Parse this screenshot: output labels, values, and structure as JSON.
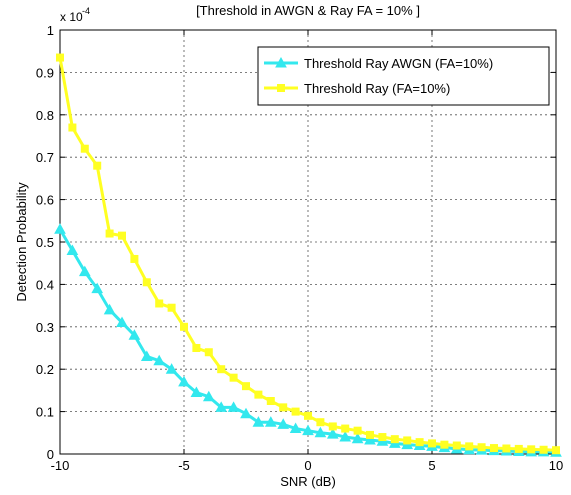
{
  "chart_data": {
    "type": "line",
    "title": "[Threshold in AWGN & Ray FA = 10% ]",
    "xlabel": "SNR (dB)",
    "ylabel": "Detection Probability",
    "y_exponent_base": "x 10",
    "y_exponent_power": "-4",
    "xlim": [
      -10,
      10
    ],
    "ylim": [
      0,
      1
    ],
    "xticks": [
      -10,
      -5,
      0,
      5,
      10
    ],
    "yticks": [
      0,
      0.1,
      0.2,
      0.3,
      0.4,
      0.5,
      0.6,
      0.7,
      0.8,
      0.9,
      1
    ],
    "ytick_labels": [
      "0",
      "0.1",
      "0.2",
      "0.3",
      "0.4",
      "0.5",
      "0.6",
      "0.7",
      "0.8",
      "0.9",
      "1"
    ],
    "xtick_labels": [
      "-10",
      "-5",
      "0",
      "5",
      "10"
    ],
    "grid": true,
    "legend_position": "top-right",
    "x": [
      -10,
      -9.5,
      -9,
      -8.5,
      -8,
      -7.5,
      -7,
      -6.5,
      -6,
      -5.5,
      -5,
      -4.5,
      -4,
      -3.5,
      -3,
      -2.5,
      -2,
      -1.5,
      -1,
      -0.5,
      0,
      0.5,
      1,
      1.5,
      2,
      2.5,
      3,
      3.5,
      4,
      4.5,
      5,
      5.5,
      6,
      6.5,
      7,
      7.5,
      8,
      8.5,
      9,
      9.5,
      10
    ],
    "series": [
      {
        "name": "Threshold  Ray  AWGN (FA=10%)",
        "color": "#33e8ee",
        "marker": "triangle",
        "values": [
          0.53,
          0.48,
          0.43,
          0.39,
          0.34,
          0.31,
          0.28,
          0.23,
          0.22,
          0.2,
          0.17,
          0.145,
          0.135,
          0.11,
          0.11,
          0.095,
          0.075,
          0.075,
          0.07,
          0.06,
          0.055,
          0.05,
          0.047,
          0.04,
          0.036,
          0.033,
          0.03,
          0.025,
          0.022,
          0.02,
          0.018,
          0.015,
          0.012,
          0.01,
          0.009,
          0.008,
          0.007,
          0.006,
          0.005,
          0.005,
          0.004
        ]
      },
      {
        "name": "Threshold  Ray (FA=10%)",
        "color": "#ffff22",
        "marker": "square",
        "values": [
          0.935,
          0.77,
          0.72,
          0.68,
          0.52,
          0.515,
          0.46,
          0.405,
          0.355,
          0.345,
          0.3,
          0.25,
          0.24,
          0.2,
          0.18,
          0.16,
          0.14,
          0.125,
          0.11,
          0.1,
          0.09,
          0.075,
          0.065,
          0.06,
          0.055,
          0.045,
          0.04,
          0.035,
          0.032,
          0.028,
          0.025,
          0.022,
          0.02,
          0.018,
          0.016,
          0.014,
          0.013,
          0.012,
          0.011,
          0.01,
          0.009
        ]
      }
    ]
  }
}
